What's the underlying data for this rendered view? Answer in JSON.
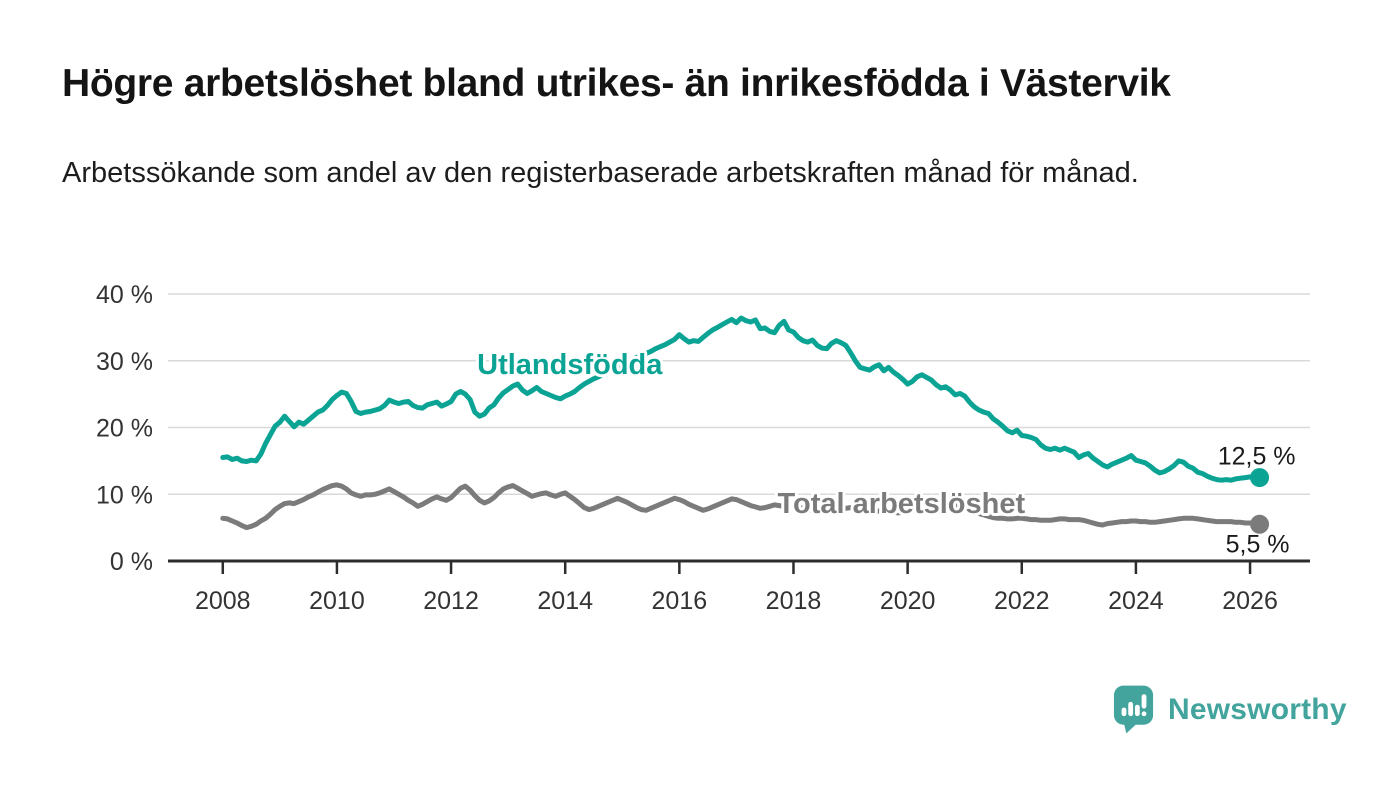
{
  "page": {
    "title": "Högre arbetslöshet bland utrikes- än inrikesfödda i Västervik",
    "subtitle": "Arbetssökande som andel av den registerbaserade arbetskraften månad för månad."
  },
  "footer": {
    "brand_name": "Newsworthy",
    "logo_icon": "bar-chart-speech-bubble-icon",
    "brand_color": "#42a49c"
  },
  "chart_data": {
    "type": "line",
    "title": "Arbetssökande som andel av den registerbaserade arbetskraften månad för månad",
    "colors": {
      "grid": "#d9d9d9",
      "axis": "#2d2d2d",
      "axis_text": "#333333",
      "value_label": "#1a1a1a"
    },
    "x_axis": {
      "ticks": [
        2008,
        2010,
        2012,
        2014,
        2016,
        2018,
        2020,
        2022,
        2024,
        2026
      ],
      "tick_labels": [
        "2008",
        "2010",
        "2012",
        "2014",
        "2016",
        "2018",
        "2020",
        "2022",
        "2024",
        "2026"
      ],
      "range": [
        2007.0,
        2027.0
      ],
      "gridlines": false
    },
    "y_axis": {
      "tick_values": [
        40,
        30,
        20,
        10,
        0
      ],
      "tick_labels": [
        "40 %",
        "30 %",
        "20 %",
        "10 %",
        "0 %"
      ],
      "range": [
        0,
        42
      ],
      "unit": "%",
      "gridlines": true
    },
    "legend_position": "inline-labels",
    "series": [
      {
        "id": "utlandsfodda",
        "name": "Utlandsfödda",
        "color": "#0aa394",
        "start_year": 2008,
        "step_months": 1,
        "end_label": "12,5 %",
        "end_value": 12.5,
        "label": {
          "year": 2014.08,
          "value": 29.5,
          "anchor": "middle"
        },
        "values": [
          15.5,
          15.6,
          15.2,
          15.4,
          15.0,
          14.9,
          15.1,
          15.0,
          16.0,
          17.6,
          18.9,
          20.2,
          20.8,
          21.7,
          20.9,
          20.1,
          20.8,
          20.5,
          21.1,
          21.7,
          22.3,
          22.6,
          23.3,
          24.2,
          24.8,
          25.3,
          25.1,
          23.9,
          22.4,
          22.1,
          22.3,
          22.4,
          22.6,
          22.8,
          23.3,
          24.1,
          23.8,
          23.6,
          23.8,
          23.9,
          23.3,
          23.0,
          22.9,
          23.4,
          23.6,
          23.8,
          23.2,
          23.5,
          23.9,
          25.0,
          25.4,
          25.0,
          24.2,
          22.3,
          21.7,
          22.0,
          22.9,
          23.4,
          24.4,
          25.2,
          25.7,
          26.2,
          26.5,
          25.6,
          25.1,
          25.5,
          26.0,
          25.4,
          25.1,
          24.8,
          24.5,
          24.3,
          24.7,
          25.0,
          25.4,
          26.0,
          26.5,
          26.9,
          27.3,
          27.6,
          28.0,
          28.4,
          28.8,
          29.1,
          29.4,
          29.8,
          30.2,
          30.5,
          30.8,
          31.1,
          31.4,
          31.8,
          32.1,
          32.4,
          32.8,
          33.2,
          33.9,
          33.3,
          32.8,
          33.0,
          32.9,
          33.5,
          34.1,
          34.6,
          35.0,
          35.4,
          35.8,
          36.2,
          35.7,
          36.4,
          36.0,
          35.8,
          36.1,
          34.8,
          34.9,
          34.4,
          34.2,
          35.3,
          35.9,
          34.6,
          34.3,
          33.5,
          33.0,
          32.8,
          33.1,
          32.3,
          31.9,
          31.8,
          32.6,
          33.0,
          32.7,
          32.3,
          31.2,
          30.0,
          29.0,
          28.8,
          28.6,
          29.1,
          29.4,
          28.5,
          29.0,
          28.3,
          27.8,
          27.2,
          26.5,
          26.9,
          27.6,
          27.9,
          27.5,
          27.1,
          26.4,
          25.9,
          26.1,
          25.6,
          24.9,
          25.1,
          24.7,
          23.8,
          23.1,
          22.6,
          22.3,
          22.1,
          21.3,
          20.8,
          20.2,
          19.5,
          19.2,
          19.6,
          18.8,
          18.7,
          18.5,
          18.2,
          17.4,
          16.9,
          16.7,
          16.9,
          16.6,
          16.9,
          16.6,
          16.3,
          15.5,
          15.9,
          16.1,
          15.4,
          14.9,
          14.4,
          14.1,
          14.5,
          14.8,
          15.1,
          15.4,
          15.8,
          15.1,
          14.9,
          14.7,
          14.2,
          13.6,
          13.2,
          13.4,
          13.8,
          14.3,
          15.0,
          14.8,
          14.2,
          13.9,
          13.3,
          13.1,
          12.7,
          12.4,
          12.2,
          12.1,
          12.2,
          12.1,
          12.3,
          12.4,
          12.5,
          12.6,
          12.4,
          12.5
        ]
      },
      {
        "id": "total-arbetsloshet",
        "name": "Total arbetslöshet",
        "color": "#7b7b7b",
        "start_year": 2008,
        "step_months": 1,
        "end_label": "5,5 %",
        "end_value": 5.5,
        "label": {
          "year": 2017.72,
          "value": 8.7,
          "anchor": "start"
        },
        "values": [
          6.4,
          6.3,
          6.0,
          5.7,
          5.3,
          5.0,
          5.2,
          5.5,
          6.0,
          6.4,
          7.0,
          7.7,
          8.2,
          8.6,
          8.7,
          8.6,
          8.9,
          9.2,
          9.6,
          9.9,
          10.3,
          10.7,
          11.0,
          11.3,
          11.4,
          11.2,
          10.8,
          10.2,
          9.9,
          9.7,
          9.9,
          9.9,
          10.0,
          10.2,
          10.5,
          10.8,
          10.4,
          10.0,
          9.6,
          9.1,
          8.7,
          8.2,
          8.5,
          8.9,
          9.3,
          9.6,
          9.3,
          9.1,
          9.5,
          10.2,
          10.9,
          11.2,
          10.6,
          9.8,
          9.1,
          8.7,
          9.0,
          9.5,
          10.2,
          10.8,
          11.1,
          11.3,
          10.9,
          10.5,
          10.1,
          9.7,
          9.9,
          10.1,
          10.2,
          9.9,
          9.7,
          10.0,
          10.2,
          9.7,
          9.2,
          8.6,
          8.0,
          7.7,
          7.9,
          8.2,
          8.5,
          8.8,
          9.1,
          9.4,
          9.1,
          8.8,
          8.4,
          8.0,
          7.7,
          7.6,
          7.9,
          8.2,
          8.5,
          8.8,
          9.1,
          9.4,
          9.2,
          8.9,
          8.5,
          8.2,
          7.9,
          7.6,
          7.8,
          8.1,
          8.4,
          8.7,
          9.0,
          9.3,
          9.2,
          8.9,
          8.6,
          8.3,
          8.1,
          7.9,
          8.0,
          8.2,
          8.4,
          8.3,
          8.2,
          8.1,
          8.3,
          8.1,
          7.9,
          7.7,
          7.5,
          7.4,
          7.6,
          7.8,
          8.0,
          8.1,
          8.0,
          7.9,
          8.0,
          7.8,
          7.5,
          7.3,
          7.2,
          7.3,
          7.5,
          7.4,
          7.4,
          7.3,
          7.2,
          7.3,
          7.5,
          7.9,
          8.5,
          8.9,
          9.2,
          9.4,
          9.3,
          9.1,
          8.9,
          8.7,
          8.4,
          8.2,
          8.0,
          7.7,
          7.4,
          7.1,
          6.9,
          6.7,
          6.5,
          6.4,
          6.4,
          6.3,
          6.3,
          6.4,
          6.4,
          6.3,
          6.2,
          6.2,
          6.1,
          6.1,
          6.1,
          6.2,
          6.3,
          6.3,
          6.2,
          6.2,
          6.2,
          6.1,
          5.9,
          5.7,
          5.5,
          5.4,
          5.6,
          5.7,
          5.8,
          5.9,
          5.9,
          6.0,
          6.0,
          5.9,
          5.9,
          5.8,
          5.8,
          5.9,
          6.0,
          6.1,
          6.2,
          6.3,
          6.4,
          6.4,
          6.4,
          6.3,
          6.2,
          6.1,
          6.0,
          5.9,
          5.9,
          5.9,
          5.9,
          5.8,
          5.8,
          5.7,
          5.7,
          5.6,
          5.5
        ]
      }
    ]
  }
}
